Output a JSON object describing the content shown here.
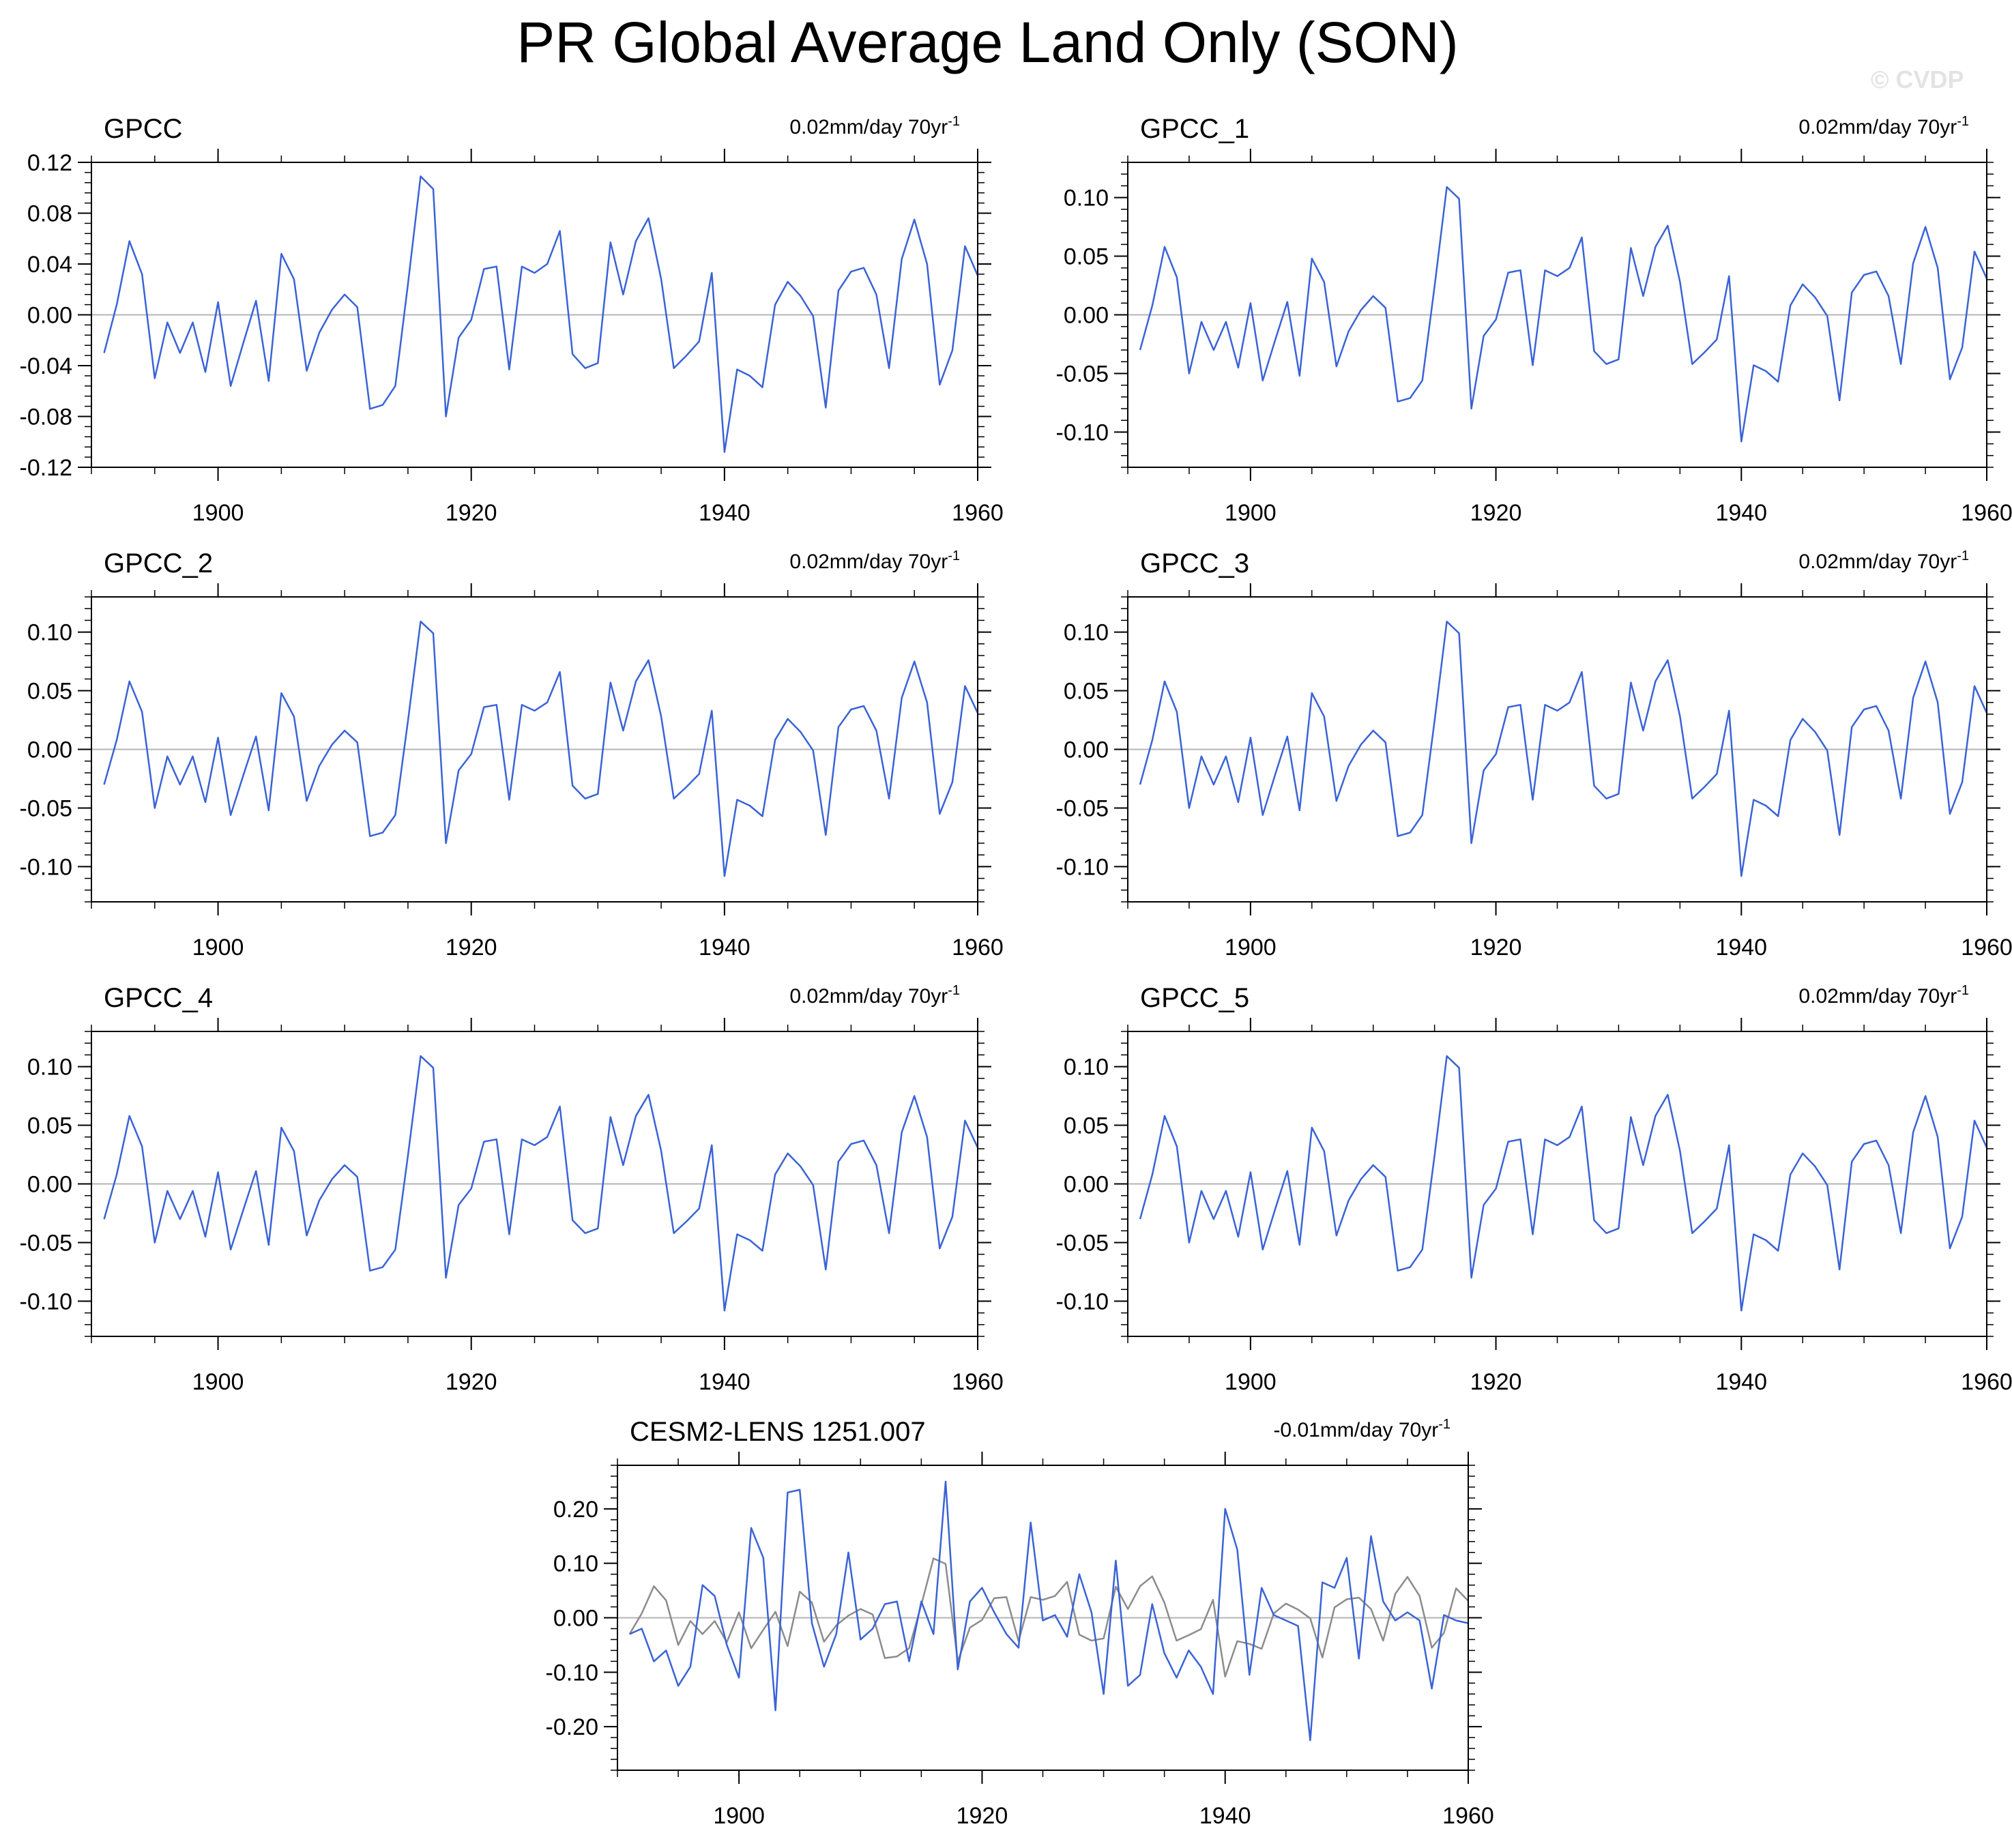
{
  "title": "PR Global Average Land Only (SON)",
  "watermark": "© CVDP",
  "colors": {
    "series": "#3a63d6",
    "reference": "#8c8c8c",
    "axis": "#000000",
    "zero_line": "#b4b4b4"
  },
  "chart_data": [
    {
      "type": "line",
      "title": "GPCC",
      "trend": "0.02mm/day 70yr",
      "trend_sup": "-1",
      "xlim": [
        1890,
        1960
      ],
      "ylim": [
        -0.12,
        0.12
      ],
      "xticks": [
        1900,
        1920,
        1940,
        1960
      ],
      "yticks": [
        -0.12,
        -0.08,
        -0.04,
        0.0,
        0.04,
        0.08,
        0.12
      ],
      "ytick_labels": [
        "-0.12",
        "-0.08",
        "-0.04",
        "0.00",
        "0.04",
        "0.08",
        "0.12"
      ],
      "series_ref": "gpcc"
    },
    {
      "type": "line",
      "title": "GPCC_1",
      "trend": "0.02mm/day 70yr",
      "trend_sup": "-1",
      "xlim": [
        1890,
        1960
      ],
      "ylim": [
        -0.13,
        0.13
      ],
      "xticks": [
        1900,
        1920,
        1940,
        1960
      ],
      "yticks": [
        -0.1,
        -0.05,
        0.0,
        0.05,
        0.1
      ],
      "ytick_labels": [
        "-0.10",
        "-0.05",
        "0.00",
        "0.05",
        "0.10"
      ],
      "series_ref": "gpcc"
    },
    {
      "type": "line",
      "title": "GPCC_2",
      "trend": "0.02mm/day 70yr",
      "trend_sup": "-1",
      "xlim": [
        1890,
        1960
      ],
      "ylim": [
        -0.13,
        0.13
      ],
      "xticks": [
        1900,
        1920,
        1940,
        1960
      ],
      "yticks": [
        -0.1,
        -0.05,
        0.0,
        0.05,
        0.1
      ],
      "ytick_labels": [
        "-0.10",
        "-0.05",
        "0.00",
        "0.05",
        "0.10"
      ],
      "series_ref": "gpcc"
    },
    {
      "type": "line",
      "title": "GPCC_3",
      "trend": "0.02mm/day 70yr",
      "trend_sup": "-1",
      "xlim": [
        1890,
        1960
      ],
      "ylim": [
        -0.13,
        0.13
      ],
      "xticks": [
        1900,
        1920,
        1940,
        1960
      ],
      "yticks": [
        -0.1,
        -0.05,
        0.0,
        0.05,
        0.1
      ],
      "ytick_labels": [
        "-0.10",
        "-0.05",
        "0.00",
        "0.05",
        "0.10"
      ],
      "series_ref": "gpcc"
    },
    {
      "type": "line",
      "title": "GPCC_4",
      "trend": "0.02mm/day 70yr",
      "trend_sup": "-1",
      "xlim": [
        1890,
        1960
      ],
      "ylim": [
        -0.13,
        0.13
      ],
      "xticks": [
        1900,
        1920,
        1940,
        1960
      ],
      "yticks": [
        -0.1,
        -0.05,
        0.0,
        0.05,
        0.1
      ],
      "ytick_labels": [
        "-0.10",
        "-0.05",
        "0.00",
        "0.05",
        "0.10"
      ],
      "series_ref": "gpcc"
    },
    {
      "type": "line",
      "title": "GPCC_5",
      "trend": "0.02mm/day 70yr",
      "trend_sup": "-1",
      "xlim": [
        1890,
        1960
      ],
      "ylim": [
        -0.13,
        0.13
      ],
      "xticks": [
        1900,
        1920,
        1940,
        1960
      ],
      "yticks": [
        -0.1,
        -0.05,
        0.0,
        0.05,
        0.1
      ],
      "ytick_labels": [
        "-0.10",
        "-0.05",
        "0.00",
        "0.05",
        "0.10"
      ],
      "series_ref": "gpcc"
    },
    {
      "type": "line",
      "title": "CESM2-LENS 1251.007",
      "trend": "-0.01mm/day 70yr",
      "trend_sup": "-1",
      "xlim": [
        1890,
        1960
      ],
      "ylim": [
        -0.28,
        0.28
      ],
      "xticks": [
        1900,
        1920,
        1940,
        1960
      ],
      "yticks": [
        -0.2,
        -0.1,
        0.0,
        0.1,
        0.2
      ],
      "ytick_labels": [
        "-0.20",
        "-0.10",
        "0.00",
        "0.10",
        "0.20"
      ],
      "series_ref": "cesm",
      "reference_ref": "gpcc"
    }
  ],
  "series_values": {
    "gpcc": {
      "x_start": 1891,
      "values": [
        -0.03,
        0.008,
        0.058,
        0.032,
        -0.05,
        -0.006,
        -0.03,
        -0.006,
        -0.045,
        0.01,
        -0.056,
        -0.022,
        0.011,
        -0.052,
        0.048,
        0.028,
        -0.044,
        -0.014,
        0.004,
        0.016,
        0.006,
        -0.074,
        -0.071,
        -0.056,
        0.024,
        0.109,
        0.099,
        -0.08,
        -0.018,
        -0.004,
        0.036,
        0.038,
        -0.043,
        0.038,
        0.033,
        0.04,
        0.066,
        -0.031,
        -0.042,
        -0.038,
        0.057,
        0.016,
        0.058,
        0.076,
        0.028,
        -0.042,
        -0.032,
        -0.021,
        0.033,
        -0.108,
        -0.043,
        -0.048,
        -0.057,
        0.008,
        0.026,
        0.015,
        -0.001,
        -0.073,
        0.019,
        0.034,
        0.037,
        0.016,
        -0.042,
        0.044,
        0.075,
        0.04,
        -0.055,
        -0.028,
        0.054,
        0.031
      ]
    },
    "cesm": {
      "x_start": 1891,
      "values": [
        -0.03,
        -0.02,
        -0.08,
        -0.06,
        -0.125,
        -0.09,
        0.06,
        0.04,
        -0.05,
        -0.11,
        0.165,
        0.11,
        -0.17,
        0.23,
        0.235,
        -0.01,
        -0.09,
        -0.03,
        0.12,
        -0.04,
        -0.02,
        0.025,
        0.03,
        -0.08,
        0.03,
        -0.03,
        0.25,
        -0.095,
        0.03,
        0.055,
        0.01,
        -0.03,
        -0.055,
        0.175,
        -0.005,
        0.005,
        -0.035,
        0.08,
        0.01,
        -0.14,
        0.105,
        -0.125,
        -0.105,
        0.025,
        -0.065,
        -0.11,
        -0.06,
        -0.09,
        -0.14,
        0.2,
        0.125,
        -0.105,
        0.055,
        0.005,
        -0.005,
        -0.015,
        -0.225,
        0.065,
        0.055,
        0.11,
        -0.075,
        0.15,
        0.03,
        -0.005,
        0.01,
        -0.005,
        -0.13,
        0.005,
        -0.005,
        -0.01
      ]
    }
  }
}
